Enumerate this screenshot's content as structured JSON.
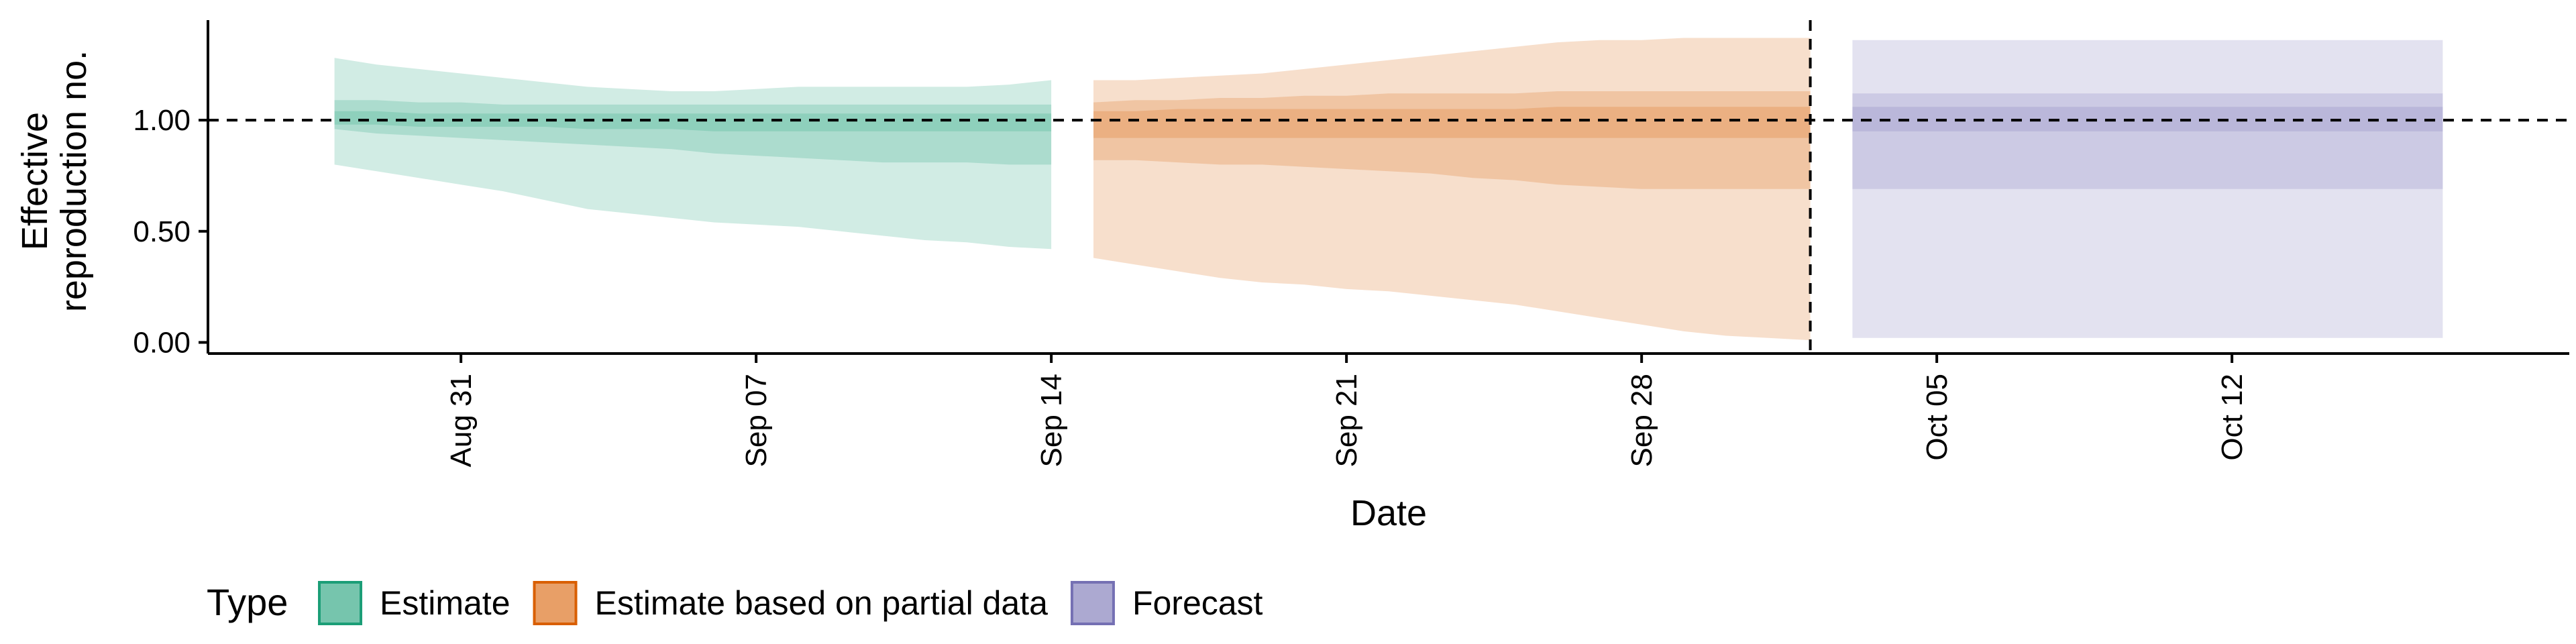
{
  "chart_data": {
    "type": "area",
    "xlabel": "Date",
    "ylabel_lines": [
      "Effective",
      "reproduction no."
    ],
    "xlim": [
      "2020-08-25",
      "2020-10-20"
    ],
    "ylim": [
      -0.05,
      1.45
    ],
    "y_ticks": [
      0.0,
      0.5,
      1.0
    ],
    "y_tick_labels": [
      "0.00",
      "0.50",
      "1.00"
    ],
    "x_ticks": [
      "2020-08-31",
      "2020-09-07",
      "2020-09-14",
      "2020-09-21",
      "2020-09-28",
      "2020-10-05",
      "2020-10-12"
    ],
    "x_tick_labels": [
      "Aug 31",
      "Sep 07",
      "Sep 14",
      "Sep 21",
      "Sep 28",
      "Oct 05",
      "Oct 12"
    ],
    "hline": 1.0,
    "vline": "2020-10-02",
    "grid": false,
    "legend": {
      "title": "Type",
      "position": "bottom-left",
      "entries": [
        "Estimate",
        "Estimate based on partial data",
        "Forecast"
      ]
    },
    "series": [
      {
        "name": "Estimate",
        "color": "#1b9e77",
        "x": [
          "2020-08-28",
          "2020-08-29",
          "2020-08-30",
          "2020-08-31",
          "2020-09-01",
          "2020-09-02",
          "2020-09-03",
          "2020-09-04",
          "2020-09-05",
          "2020-09-06",
          "2020-09-07",
          "2020-09-08",
          "2020-09-09",
          "2020-09-10",
          "2020-09-11",
          "2020-09-12",
          "2020-09-13",
          "2020-09-14"
        ],
        "bands": [
          {
            "lower": [
              0.8,
              0.77,
              0.74,
              0.71,
              0.68,
              0.64,
              0.6,
              0.58,
              0.56,
              0.54,
              0.53,
              0.52,
              0.5,
              0.48,
              0.46,
              0.45,
              0.43,
              0.42
            ],
            "upper": [
              1.28,
              1.25,
              1.23,
              1.21,
              1.19,
              1.17,
              1.15,
              1.14,
              1.13,
              1.13,
              1.14,
              1.15,
              1.15,
              1.15,
              1.15,
              1.15,
              1.16,
              1.18
            ]
          },
          {
            "lower": [
              0.96,
              0.94,
              0.93,
              0.92,
              0.91,
              0.9,
              0.89,
              0.88,
              0.87,
              0.85,
              0.84,
              0.83,
              0.82,
              0.81,
              0.81,
              0.81,
              0.8,
              0.8
            ],
            "upper": [
              1.09,
              1.09,
              1.08,
              1.08,
              1.07,
              1.07,
              1.07,
              1.07,
              1.07,
              1.07,
              1.07,
              1.07,
              1.07,
              1.07,
              1.07,
              1.07,
              1.07,
              1.07
            ]
          },
          {
            "lower": [
              0.98,
              0.98,
              0.97,
              0.97,
              0.97,
              0.97,
              0.96,
              0.96,
              0.96,
              0.95,
              0.95,
              0.95,
              0.95,
              0.95,
              0.95,
              0.95,
              0.95,
              0.95
            ],
            "upper": [
              1.04,
              1.04,
              1.03,
              1.03,
              1.03,
              1.03,
              1.03,
              1.03,
              1.03,
              1.03,
              1.03,
              1.03,
              1.03,
              1.03,
              1.03,
              1.03,
              1.03,
              1.03
            ]
          }
        ]
      },
      {
        "name": "Estimate based on partial data",
        "color": "#d95f02",
        "x": [
          "2020-09-15",
          "2020-09-16",
          "2020-09-17",
          "2020-09-18",
          "2020-09-19",
          "2020-09-20",
          "2020-09-21",
          "2020-09-22",
          "2020-09-23",
          "2020-09-24",
          "2020-09-25",
          "2020-09-26",
          "2020-09-27",
          "2020-09-28",
          "2020-09-29",
          "2020-09-30",
          "2020-10-01",
          "2020-10-02"
        ],
        "bands": [
          {
            "lower": [
              0.38,
              0.35,
              0.32,
              0.29,
              0.27,
              0.26,
              0.24,
              0.23,
              0.21,
              0.19,
              0.17,
              0.14,
              0.11,
              0.08,
              0.05,
              0.03,
              0.02,
              0.01
            ],
            "upper": [
              1.18,
              1.18,
              1.19,
              1.2,
              1.21,
              1.23,
              1.25,
              1.27,
              1.29,
              1.31,
              1.33,
              1.35,
              1.36,
              1.36,
              1.37,
              1.37,
              1.37,
              1.37
            ]
          },
          {
            "lower": [
              0.82,
              0.82,
              0.81,
              0.8,
              0.8,
              0.79,
              0.78,
              0.77,
              0.76,
              0.74,
              0.73,
              0.71,
              0.7,
              0.69,
              0.69,
              0.69,
              0.69,
              0.69
            ],
            "upper": [
              1.08,
              1.09,
              1.09,
              1.1,
              1.1,
              1.11,
              1.11,
              1.12,
              1.12,
              1.12,
              1.12,
              1.13,
              1.13,
              1.13,
              1.13,
              1.13,
              1.13,
              1.13
            ]
          },
          {
            "lower": [
              0.92,
              0.92,
              0.92,
              0.92,
              0.92,
              0.92,
              0.92,
              0.92,
              0.92,
              0.92,
              0.92,
              0.92,
              0.92,
              0.92,
              0.92,
              0.92,
              0.92,
              0.92
            ],
            "upper": [
              1.04,
              1.04,
              1.05,
              1.05,
              1.05,
              1.05,
              1.05,
              1.05,
              1.05,
              1.05,
              1.05,
              1.06,
              1.06,
              1.06,
              1.06,
              1.06,
              1.06,
              1.06
            ]
          }
        ]
      },
      {
        "name": "Forecast",
        "color": "#7570b3",
        "x": [
          "2020-10-03",
          "2020-10-17"
        ],
        "bands": [
          {
            "lower": [
              0.02,
              0.02
            ],
            "upper": [
              1.36,
              1.36
            ]
          },
          {
            "lower": [
              0.69,
              0.69
            ],
            "upper": [
              1.12,
              1.12
            ]
          },
          {
            "lower": [
              0.95,
              0.95
            ],
            "upper": [
              1.06,
              1.06
            ]
          }
        ]
      }
    ]
  }
}
